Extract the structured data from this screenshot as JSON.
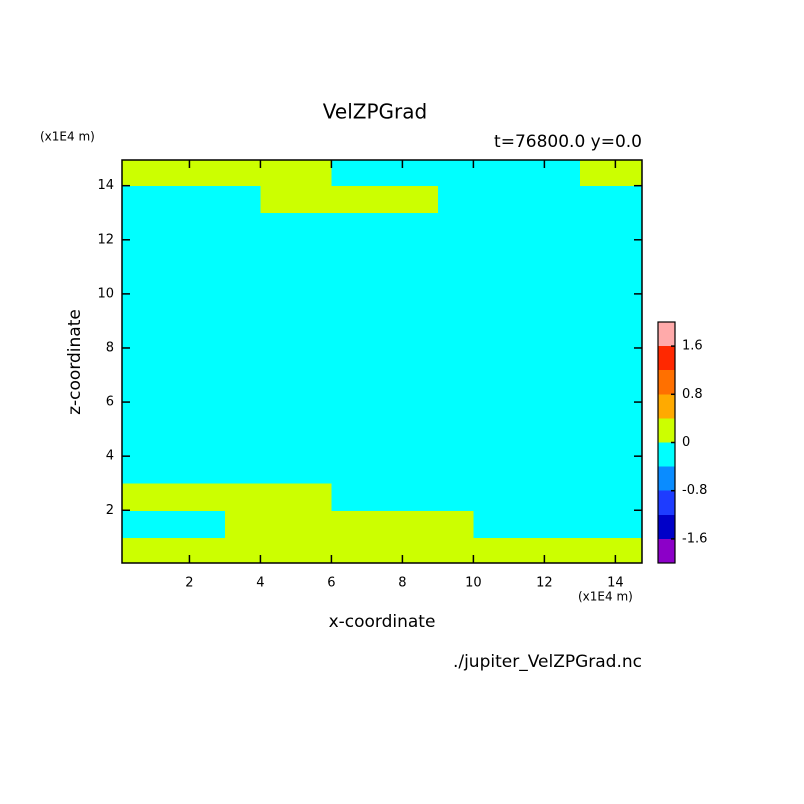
{
  "chart_data": {
    "type": "contour",
    "title": "VelZPGrad",
    "subtitle": "t=76800.0 y=0.0",
    "y_unit": "(x1E4 m)",
    "x_unit": "(x1E4 m)",
    "xlabel": "x-coordinate",
    "ylabel": "z-coordinate",
    "source": "./jupiter_VelZPGrad.nc",
    "x": [
      0.5,
      1.5,
      2.5,
      3.5,
      4.5,
      5.5,
      6.5,
      7.5,
      8.5,
      9.5,
      10.5,
      11.5,
      12.5,
      13.5,
      14.5
    ],
    "y": [
      0.5,
      1.5,
      2.5,
      3.5,
      4.5,
      5.5,
      6.5,
      7.5,
      8.5,
      9.5,
      10.5,
      11.5,
      12.5,
      13.5,
      14.5
    ],
    "values": [
      [
        0.2,
        0.2,
        0.2,
        0.2,
        0.2,
        0.2,
        0.2,
        0.2,
        0.2,
        0.2,
        0.2,
        0.2,
        0.2,
        0.2,
        0.2
      ],
      [
        -0.2,
        -0.2,
        -0.2,
        0.2,
        0.2,
        0.2,
        0.2,
        0.2,
        0.2,
        0.2,
        -0.2,
        -0.2,
        -0.2,
        -0.2,
        -0.2
      ],
      [
        0.2,
        0.2,
        0.2,
        0.2,
        0.2,
        0.2,
        -0.2,
        -0.2,
        -0.2,
        -0.2,
        -0.2,
        -0.2,
        -0.2,
        -0.2,
        -0.2
      ],
      [
        -0.2,
        -0.2,
        -0.2,
        -0.2,
        -0.2,
        -0.2,
        -0.2,
        -0.2,
        -0.2,
        -0.2,
        -0.2,
        -0.2,
        -0.2,
        -0.2,
        -0.2
      ],
      [
        -0.2,
        -0.2,
        -0.2,
        -0.2,
        -0.2,
        -0.2,
        -0.2,
        -0.2,
        -0.2,
        -0.2,
        -0.2,
        -0.2,
        -0.2,
        -0.2,
        -0.2
      ],
      [
        -0.2,
        -0.2,
        -0.2,
        -0.2,
        -0.2,
        -0.2,
        -0.2,
        -0.2,
        -0.2,
        -0.2,
        -0.2,
        -0.2,
        -0.2,
        -0.2,
        -0.2
      ],
      [
        -0.2,
        -0.2,
        -0.2,
        -0.2,
        -0.2,
        -0.2,
        -0.2,
        -0.2,
        -0.2,
        -0.2,
        -0.2,
        -0.2,
        -0.2,
        -0.2,
        -0.2
      ],
      [
        -0.2,
        -0.2,
        -0.2,
        -0.2,
        -0.2,
        -0.2,
        -0.2,
        -0.2,
        -0.2,
        -0.2,
        -0.2,
        -0.2,
        -0.2,
        -0.2,
        -0.2
      ],
      [
        -0.2,
        -0.2,
        -0.2,
        -0.2,
        -0.2,
        -0.2,
        -0.2,
        -0.2,
        -0.2,
        -0.2,
        -0.2,
        -0.2,
        -0.2,
        -0.2,
        -0.2
      ],
      [
        -0.2,
        -0.2,
        -0.2,
        -0.2,
        -0.2,
        -0.2,
        -0.2,
        -0.2,
        -0.2,
        -0.2,
        -0.2,
        -0.2,
        -0.2,
        -0.2,
        -0.2
      ],
      [
        -0.2,
        -0.2,
        -0.2,
        -0.2,
        -0.2,
        -0.2,
        -0.2,
        -0.2,
        -0.2,
        -0.2,
        -0.2,
        -0.2,
        -0.2,
        -0.2,
        -0.2
      ],
      [
        -0.2,
        -0.2,
        -0.2,
        -0.2,
        -0.2,
        -0.2,
        -0.2,
        -0.2,
        -0.2,
        -0.2,
        -0.2,
        -0.2,
        -0.2,
        -0.2,
        -0.2
      ],
      [
        -0.2,
        -0.2,
        -0.2,
        -0.2,
        -0.2,
        -0.2,
        -0.2,
        -0.2,
        -0.2,
        -0.2,
        -0.2,
        -0.2,
        -0.2,
        -0.2,
        -0.2
      ],
      [
        -0.2,
        -0.2,
        -0.2,
        -0.2,
        0.2,
        0.2,
        0.2,
        0.2,
        0.2,
        -0.2,
        -0.2,
        -0.2,
        -0.2,
        -0.2,
        -0.2
      ],
      [
        0.2,
        0.2,
        0.2,
        0.2,
        0.2,
        0.2,
        -0.2,
        -0.2,
        -0.2,
        -0.2,
        -0.2,
        -0.2,
        -0.2,
        0.2,
        0.2
      ]
    ],
    "xlim": [
      0.1,
      14.75
    ],
    "ylim": [
      0.05,
      14.95
    ],
    "xticks": [
      2,
      4,
      6,
      8,
      10,
      12,
      14
    ],
    "yticks": [
      2,
      4,
      6,
      8,
      10,
      12,
      14
    ],
    "levels": [
      -2,
      -1.6,
      -1.2,
      -0.8,
      -0.4,
      0,
      0.4,
      0.8,
      1.2,
      1.6,
      2
    ],
    "colors": [
      "#8c00c8",
      "#0000c8",
      "#1e3cff",
      "#0a8cff",
      "#00ffff",
      "#ccff00",
      "#ffaa00",
      "#ff7000",
      "#ff2800",
      "#ffaaaa"
    ],
    "colorbar_ticks": [
      -1.6,
      -0.8,
      0,
      0.8,
      1.6
    ]
  }
}
